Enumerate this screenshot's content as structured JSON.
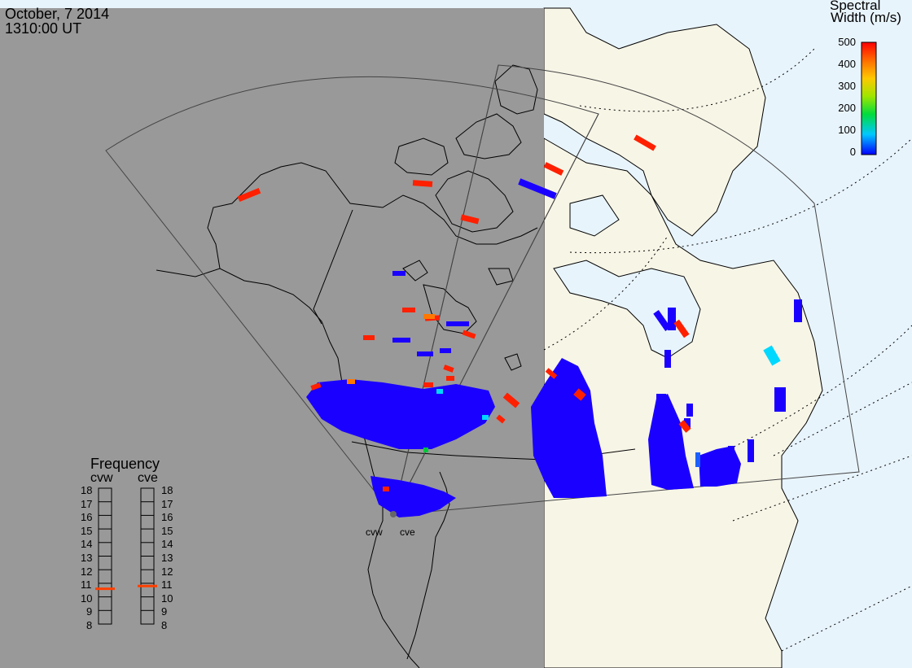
{
  "header": {
    "date": "October, 7 2014",
    "time": "1310:00 UT"
  },
  "colorbar": {
    "title_line1": "Spectral",
    "title_line2": "Width (m/s)",
    "ticks": [
      "500",
      "400",
      "300",
      "200",
      "100",
      "0"
    ],
    "range": [
      0,
      500
    ],
    "colors": [
      "#0000ff",
      "#00c8ff",
      "#00dc3c",
      "#a0e600",
      "#ffc800",
      "#ff7800",
      "#ff0000"
    ]
  },
  "frequency": {
    "title": "Frequency",
    "radars": [
      {
        "name": "cvw",
        "value": 10.6
      },
      {
        "name": "cve",
        "value": 10.8
      }
    ],
    "ticks": [
      "18",
      "17",
      "16",
      "15",
      "14",
      "13",
      "12",
      "11",
      "10",
      "9",
      "8"
    ]
  },
  "sites": [
    "cvw",
    "cve"
  ],
  "map": {
    "night_color": "#999999",
    "land_color": "#f7f5e6",
    "ocean_color": "#e8f4fc",
    "scatter_color": "#1a00ff",
    "marker_color": "#ff2000"
  }
}
